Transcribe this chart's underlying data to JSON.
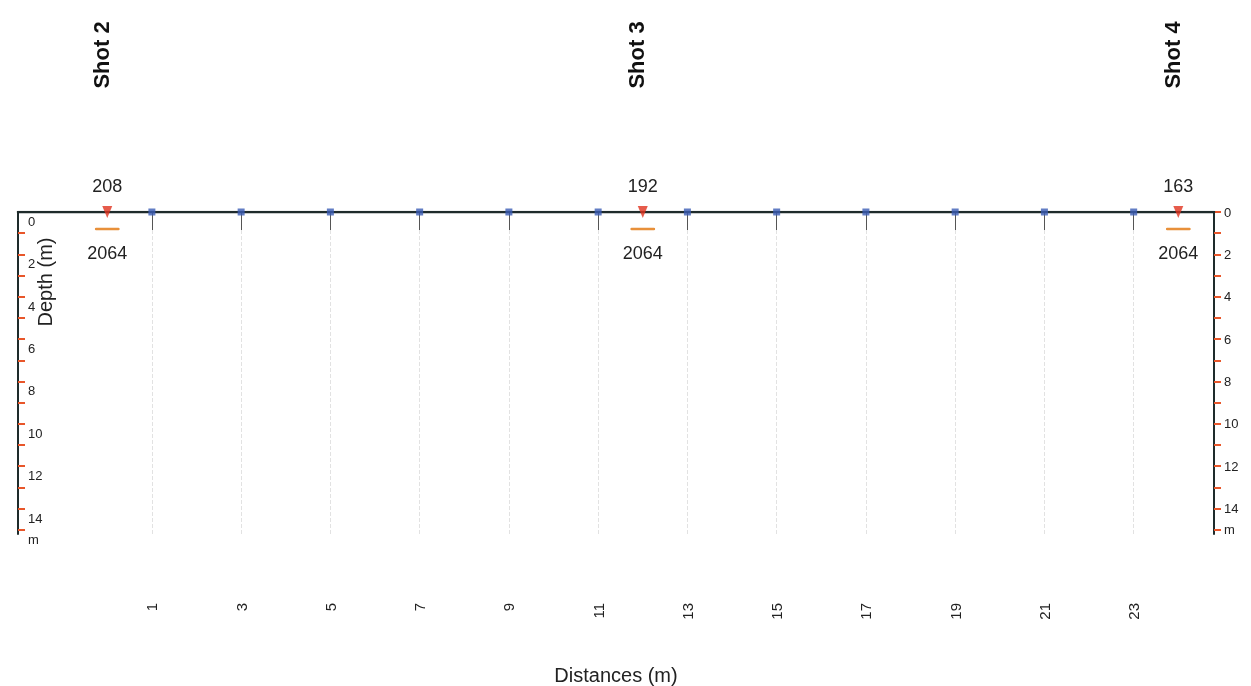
{
  "chart_data": {
    "type": "line",
    "xlabel": "Distances (m)",
    "ylabel": "Depth (m)",
    "xlim": [
      -2,
      24.8
    ],
    "xticks": [
      1,
      3,
      5,
      7,
      9,
      11,
      13,
      15,
      17,
      19,
      21,
      23
    ],
    "ylim": [
      15.2,
      0
    ],
    "yticks": [
      0,
      {
        "value": 1,
        "label": null
      },
      2,
      {
        "value": 3,
        "label": null
      },
      4,
      {
        "value": 5,
        "label": null
      },
      6,
      {
        "value": 7,
        "label": null
      },
      8,
      {
        "value": 9,
        "label": null
      },
      10,
      {
        "value": 11,
        "label": null
      },
      12,
      {
        "value": 13,
        "label": null
      },
      14,
      {
        "value": 15,
        "label": "m"
      }
    ],
    "y2lim": [
      15.2,
      0
    ],
    "y2ticks": [
      0,
      {
        "value": 1,
        "label": null
      },
      2,
      {
        "value": 3,
        "label": null
      },
      4,
      {
        "value": 5,
        "label": null
      },
      6,
      {
        "value": 7,
        "label": null
      },
      8,
      {
        "value": 9,
        "label": null
      },
      10,
      {
        "value": 11,
        "label": null
      },
      12,
      {
        "value": 13,
        "label": null
      },
      14,
      {
        "value": 15,
        "label": "m"
      }
    ],
    "grid": "x",
    "series": [
      {
        "color": "#1e2b2b",
        "x": [
          -2,
          24.8
        ],
        "values": [
          0,
          0
        ],
        "marker": "none"
      },
      {
        "type": "scatter",
        "color": "#3b5db5",
        "x": [
          1,
          3,
          5,
          7,
          9,
          11,
          13,
          15,
          17,
          19,
          21,
          23
        ],
        "values": [
          0,
          0,
          0,
          0,
          0,
          0,
          0,
          0,
          0,
          0,
          0,
          0
        ],
        "marker": "square"
      },
      {
        "type": "scatter",
        "color": "#e0321e",
        "x": [
          0,
          12,
          24
        ],
        "values": [
          0,
          0,
          0
        ],
        "marker": "triangle"
      },
      {
        "color": "#e8903a",
        "x": [
          -0.25,
          0.25,
          6,
          11.75,
          12.25,
          18,
          23.75,
          24.25
        ],
        "values": [
          0.8,
          0.8,
          null,
          0.8,
          0.8,
          null,
          0.8,
          0.8
        ],
        "marker": "none"
      }
    ],
    "annotations": [
      "Shot 2",
      "Shot 3",
      "Shot 4",
      {
        "text": "208",
        "x": 0,
        "y": 0
      },
      {
        "text": "192",
        "x": 12,
        "y": 0
      },
      {
        "text": "163",
        "x": 24,
        "y": 0
      },
      {
        "text": "2064",
        "x": 0,
        "y": 0.8
      },
      {
        "text": "2064",
        "x": 12,
        "y": 0.8
      },
      {
        "text": "2064",
        "x": 24,
        "y": 0.8
      }
    ]
  }
}
